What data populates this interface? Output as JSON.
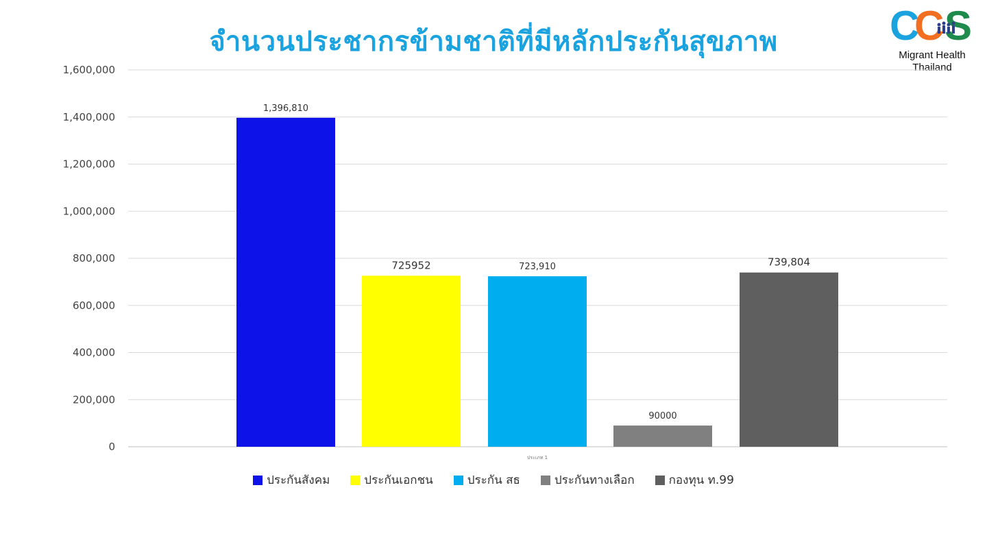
{
  "title": "จำนวนประชากรข้ามชาติที่มีหลักประกันสุขภาพ",
  "logo": {
    "mark_letters": [
      "C",
      "C",
      "S"
    ],
    "line1": "Migrant Health",
    "line2": "Thailand",
    "colors": {
      "c1": "#1ba3e0",
      "c2": "#f26f21",
      "s": "#1e8a4c",
      "figures": "#2b3f8c"
    }
  },
  "chart_data": {
    "type": "bar",
    "title": "จำนวนประชากรข้ามชาติที่มีหลักประกันสุขภาพ",
    "category_label": "ประเภท 1",
    "ylim": [
      0,
      1600000
    ],
    "yticks": [
      0,
      200000,
      400000,
      600000,
      800000,
      1000000,
      1200000,
      1400000,
      1600000
    ],
    "ytick_labels": [
      "0",
      "200,000",
      "400,000",
      "600,000",
      "800,000",
      "1,000,000",
      "1,200,000",
      "1,400,000",
      "1,600,000"
    ],
    "grid": true,
    "legend_position": "bottom",
    "series": [
      {
        "name": "ประกันสังคม",
        "value": 1396810,
        "label": "1,396,810",
        "color": "#0c12e8"
      },
      {
        "name": "ประกันเอกชน",
        "value": 725952,
        "label": "725952",
        "color": "#ffff00"
      },
      {
        "name": "ประกัน สธ",
        "value": 723910,
        "label": "723,910",
        "color": "#00aeef"
      },
      {
        "name": "ประกันทางเลือก",
        "value": 90000,
        "label": "90000",
        "color": "#808080"
      },
      {
        "name": "กองทุน ท.99",
        "value": 739804,
        "label": "739,804",
        "color": "#5f5f5f"
      }
    ]
  }
}
